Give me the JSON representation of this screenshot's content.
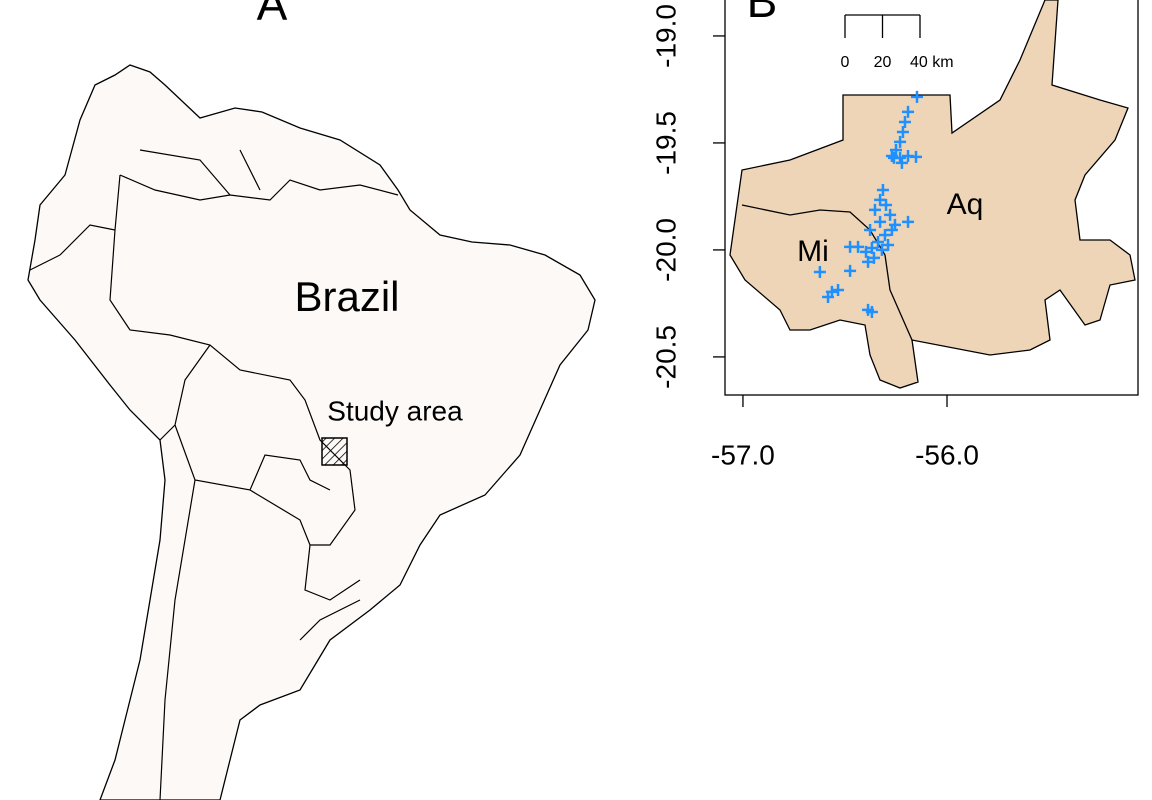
{
  "panel_a": {
    "label": "A",
    "country_label": "Brazil",
    "study_area_label": "Study area"
  },
  "panel_b": {
    "type": "scatter",
    "label": "B",
    "xlim": [
      -57.088,
      -55.064
    ],
    "ylim": [
      -20.678,
      -18.832
    ],
    "xticks": [
      {
        "value": -57,
        "label": "-57.0"
      },
      {
        "value": -56,
        "label": "-56.0"
      }
    ],
    "yticks": [
      {
        "value": -19,
        "label": "-19.0"
      },
      -19.5,
      {
        "value": -20,
        "label": "-20.0"
      },
      -20.5
    ],
    "scale_bar": {
      "ticks": [
        0,
        20,
        {
          "value": 40,
          "label": "40 km"
        }
      ]
    },
    "regions": [
      "Aq",
      "Mi"
    ],
    "points": {
      "color": "#1e90ff",
      "x": [
        -56.147,
        -56.191,
        -56.206,
        -56.216,
        -56.23,
        -56.25,
        -56.27,
        -56.23,
        -56.191,
        -56.152,
        -56.221,
        -56.26,
        -56.328,
        -56.299,
        -56.353,
        -56.279,
        -56.328,
        -56.255,
        -56.191,
        -56.377,
        -56.304,
        -56.338,
        -56.368,
        -56.319,
        -56.397,
        -56.436,
        -56.475,
        -56.358,
        -56.289,
        -56.27,
        -56.314,
        -56.387,
        -56.623,
        -56.475,
        -56.564,
        -56.534,
        -56.583,
        -56.387,
        -56.368
      ],
      "y": [
        -19.285,
        -19.355,
        -19.402,
        -19.449,
        -19.495,
        -19.533,
        -19.561,
        -19.57,
        -19.561,
        -19.565,
        -19.593,
        -19.57,
        -19.766,
        -19.79,
        -19.813,
        -19.836,
        -19.869,
        -19.883,
        -19.869,
        -19.907,
        -19.93,
        -19.963,
        -19.991,
        -20.0,
        -20.009,
        -19.986,
        -19.986,
        -20.037,
        -19.977,
        -19.907,
        -19.72,
        -20.056,
        -20.103,
        -20.098,
        -20.196,
        -20.187,
        -20.22,
        -20.28,
        -20.29
      ]
    }
  }
}
